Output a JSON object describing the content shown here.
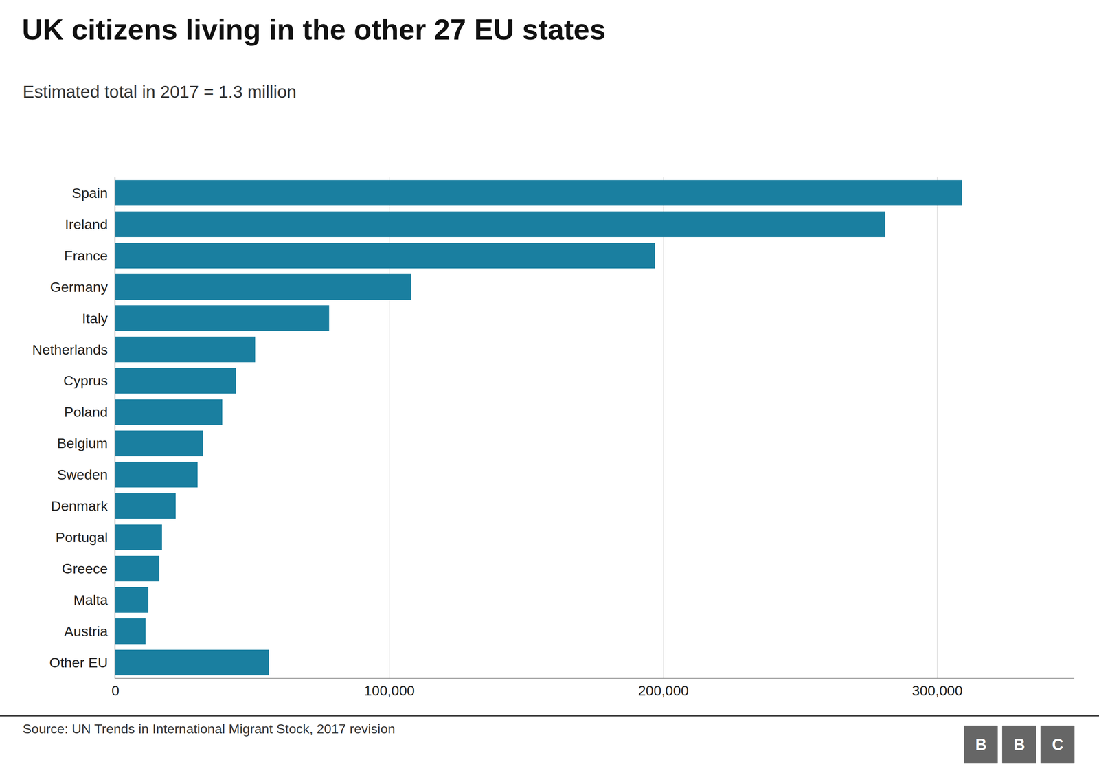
{
  "chart_data": {
    "type": "bar",
    "orientation": "horizontal",
    "title": "UK citizens living in the other 27 EU states",
    "subtitle": "Estimated total in 2017 = 1.3 million",
    "source": "Source: UN Trends in International Migrant Stock, 2017 revision",
    "annotations": [
      "B",
      "B",
      "C"
    ],
    "categories": [
      "Spain",
      "Ireland",
      "France",
      "Germany",
      "Italy",
      "Netherlands",
      "Cyprus",
      "Poland",
      "Belgium",
      "Sweden",
      "Denmark",
      "Portugal",
      "Greece",
      "Malta",
      "Austria",
      "Other EU"
    ],
    "values": [
      309000,
      281000,
      197000,
      108000,
      78000,
      51000,
      44000,
      39000,
      32000,
      30000,
      22000,
      17000,
      16000,
      12000,
      11000,
      56000
    ],
    "color": "#1a7fa0",
    "xlim": [
      0,
      350000
    ],
    "xticks": [
      0,
      {
        "value": 100000,
        "label": "100,000"
      },
      {
        "value": 200000,
        "label": "200,000"
      },
      {
        "value": 300000,
        "label": "300,000"
      }
    ],
    "grid": true
  }
}
